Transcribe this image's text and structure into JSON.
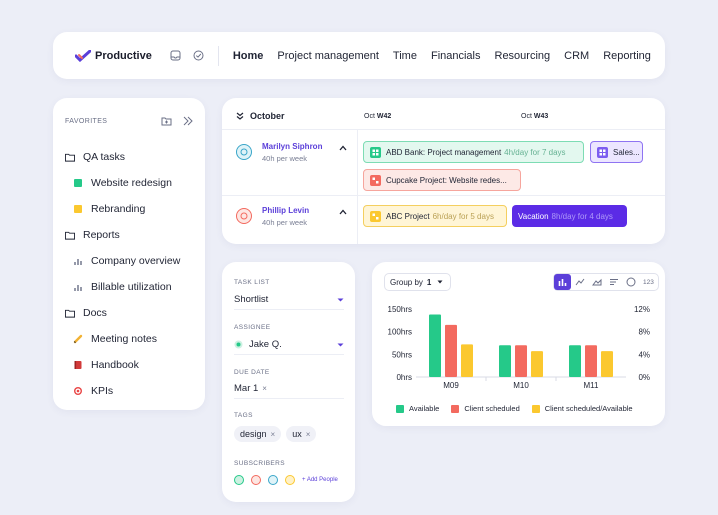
{
  "nav": {
    "logo_text": "Productive",
    "menu": [
      "Home",
      "Project management",
      "Time",
      "Financials",
      "Resourcing",
      "CRM",
      "Reporting"
    ]
  },
  "sidebar": {
    "favorites_label": "FAVORITES",
    "items": [
      {
        "label": "QA tasks",
        "icon": "folder-icon",
        "level": 1
      },
      {
        "label": "Website redesign",
        "icon": "green-square",
        "color": "#25c989",
        "level": 2
      },
      {
        "label": "Rebranding",
        "icon": "yellow-square",
        "color": "#fbc82f",
        "level": 2
      },
      {
        "label": "Reports",
        "icon": "folder-icon",
        "level": 1
      },
      {
        "label": "Company overview",
        "icon": "bar-chart-icon",
        "level": 2
      },
      {
        "label": "Billable utilization",
        "icon": "bar-chart-icon",
        "level": 2
      },
      {
        "label": "Docs",
        "icon": "folder-icon",
        "level": 1
      },
      {
        "label": "Meeting notes",
        "icon": "pencil-emoji",
        "level": 2
      },
      {
        "label": "Handbook",
        "icon": "book-emoji",
        "level": 2
      },
      {
        "label": "KPIs",
        "icon": "target-emoji",
        "level": 2
      }
    ]
  },
  "schedule": {
    "month": "October",
    "weeks": [
      {
        "prefix": "Oct",
        "label": "W42"
      },
      {
        "prefix": "Oct",
        "label": "W43"
      }
    ],
    "people": [
      {
        "name": "Marilyn Siphron",
        "capacity": "40h per week"
      },
      {
        "name": "Phillip Levin",
        "capacity": "40h per week"
      }
    ],
    "bookings": [
      {
        "title": "ABD Bank: Project management",
        "detail": "4h/day for 7 days",
        "color": "#25c989"
      },
      {
        "title": "Sales...",
        "detail": "",
        "color": "#7c5cf0"
      },
      {
        "title": "Cupcake Project: Website redes...",
        "detail": "",
        "color": "#f36a5f"
      },
      {
        "title": "ABC Project",
        "detail": "6h/day for 5 days",
        "color": "#fbc82f"
      },
      {
        "title": "Vacation",
        "detail": "8h/day for 4 days",
        "color": "#5b2be6"
      }
    ]
  },
  "task": {
    "task_list_label": "TASK LIST",
    "task_list_value": "Shortlist",
    "assignee_label": "ASSIGNEE",
    "assignee_value": "Jake Q.",
    "due_date_label": "DUE DATE",
    "due_date_value": "Mar 1",
    "tags_label": "TAGS",
    "tags": [
      "design",
      "ux"
    ],
    "subscribers_label": "SUBSCRIBERS",
    "add_people": "+ Add People"
  },
  "chart_toolbar": {
    "group_by_label": "Group by",
    "group_by_value": "1",
    "count_label": "123"
  },
  "chart_data": {
    "type": "bar",
    "categories": [
      "M09",
      "M10",
      "M11"
    ],
    "series": [
      {
        "name": "Available",
        "values": [
          138,
          70,
          70
        ],
        "color": "#25c989"
      },
      {
        "name": "Client scheduled",
        "values": [
          115,
          70,
          70
        ],
        "color": "#f36a5f"
      },
      {
        "name": "Client scheduled/Available",
        "values": [
          72,
          57,
          57
        ],
        "color": "#fbc82f"
      }
    ],
    "ylim": [
      0,
      150
    ],
    "yticks": [
      0,
      50,
      100,
      150
    ],
    "ytick_labels": [
      "0hrs",
      "50hrs",
      "100hrs",
      "150hrs"
    ],
    "y2ticks": [
      "0%",
      "4%",
      "8%",
      "12%"
    ],
    "legend_position": "bottom"
  }
}
